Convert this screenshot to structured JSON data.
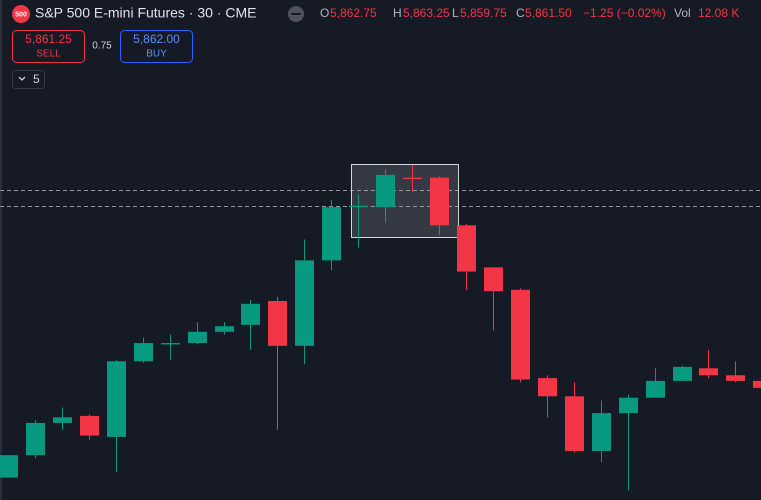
{
  "header": {
    "badge": "500",
    "title": "S&P 500 E-mini Futures · 30 · CME",
    "ohlc": [
      {
        "key": "O",
        "value": "5,862.75"
      },
      {
        "key": "H",
        "value": "5,863.25"
      },
      {
        "key": "L",
        "value": "5,859.75"
      },
      {
        "key": "C",
        "value": "5,861.50"
      }
    ],
    "change": "−1.25 (−0.02%)",
    "volume_label": "Vol",
    "volume": "12.08 K"
  },
  "trade": {
    "sell_price": "5,861.25",
    "sell": "SELL",
    "spread": "0.75",
    "buy_price": "5,862.00",
    "buy": "BUY"
  },
  "indicator": {
    "count": "5"
  },
  "chart_data": {
    "type": "candlestick",
    "open": [
      5845.5,
      5849.5,
      5855.25,
      5856.5,
      5852.75,
      5866.25,
      5869.25,
      5869.5,
      5871.5,
      5872.75,
      5877.0,
      5869.0,
      5884.25,
      5893.75,
      5893.75,
      5899.0,
      5899.0,
      5890.5,
      5883.0,
      5879.0,
      5863.25,
      5860.0,
      5850.25,
      5857.0,
      5859.75,
      5862.75,
      5865.0,
      5863.75,
      5862.75
    ],
    "high": [
      5849.5,
      5855.75,
      5858.0,
      5856.75,
      5866.5,
      5870.5,
      5871.0,
      5873.25,
      5873.25,
      5877.25,
      5877.75,
      5888.0,
      5895.0,
      5896.0,
      5900.5,
      5901.25,
      5899.25,
      5890.75,
      5883.0,
      5879.25,
      5863.75,
      5862.5,
      5859.25,
      5860.25,
      5865.0,
      5865.5,
      5868.25,
      5866.25,
      5863.25
    ],
    "low": [
      5845.5,
      5849.0,
      5854.0,
      5852.25,
      5846.5,
      5866.0,
      5866.5,
      5869.25,
      5871.0,
      5868.25,
      5854.0,
      5865.75,
      5882.5,
      5886.5,
      5891.0,
      5896.5,
      5888.75,
      5879.0,
      5871.75,
      5862.5,
      5856.25,
      5850.0,
      5848.25,
      5843.25,
      5859.75,
      5862.75,
      5863.25,
      5862.5,
      5859.75
    ],
    "close": [
      5849.5,
      5855.25,
      5856.25,
      5853.0,
      5866.25,
      5869.5,
      5869.5,
      5871.5,
      5872.5,
      5876.5,
      5869.0,
      5884.25,
      5893.75,
      5894.0,
      5899.5,
      5898.75,
      5890.5,
      5882.25,
      5878.75,
      5863.0,
      5860.0,
      5850.25,
      5857.0,
      5859.75,
      5862.75,
      5865.25,
      5863.75,
      5862.75,
      5861.5
    ],
    "ylim": [
      5841.5,
      5913.75
    ],
    "up_color": "#089981",
    "down_color": "#f23645"
  }
}
